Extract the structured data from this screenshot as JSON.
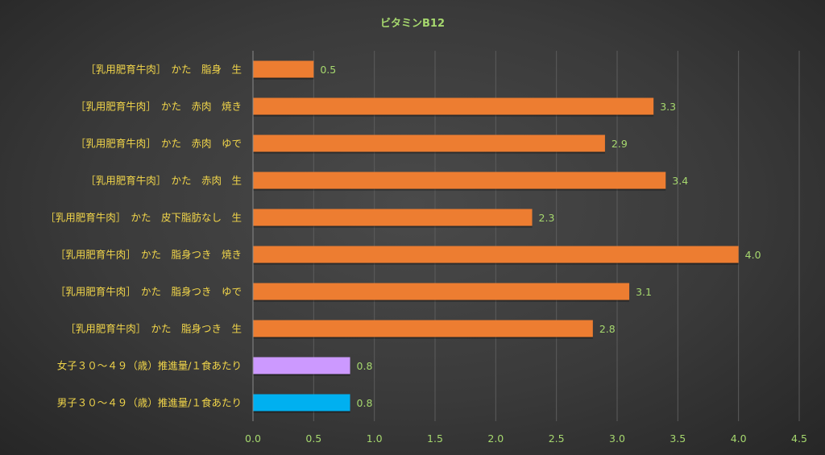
{
  "chart_data": {
    "type": "bar",
    "orientation": "horizontal",
    "title": "ビタミンB12",
    "categories": [
      "［乳用肥育牛肉］　かた　脂身　生",
      "［乳用肥育牛肉］　かた　赤肉　焼き",
      "［乳用肥育牛肉］　かた　赤肉　ゆで",
      "［乳用肥育牛肉］　かた　赤肉　生",
      "［乳用肥育牛肉］　かた　皮下脂肪なし　生",
      "［乳用肥育牛肉］　かた　脂身つき　焼き",
      "［乳用肥育牛肉］　かた　脂身つき　ゆで",
      "［乳用肥育牛肉］　かた　脂身つき　生",
      "女子３０～４９（歳）推進量/１食あたり",
      "男子３０～４９（歳）推進量/１食あたり"
    ],
    "values": [
      0.5,
      3.3,
      2.9,
      3.4,
      2.3,
      4.0,
      3.1,
      2.8,
      0.8,
      0.8
    ],
    "value_labels": [
      "0.5",
      "3.3",
      "2.9",
      "3.4",
      "2.3",
      "4.0",
      "3.1",
      "2.8",
      "0.8",
      "0.8"
    ],
    "bar_colors": [
      "#ed7d31",
      "#ed7d31",
      "#ed7d31",
      "#ed7d31",
      "#ed7d31",
      "#ed7d31",
      "#ed7d31",
      "#ed7d31",
      "#cc99ff",
      "#00b0f0"
    ],
    "xlim": [
      0,
      4.5
    ],
    "xticks": [
      "0.0",
      "0.5",
      "1.0",
      "1.5",
      "2.0",
      "2.5",
      "3.0",
      "3.5",
      "4.0",
      "4.5"
    ],
    "grid": true,
    "legend": "none",
    "xlabel": "",
    "ylabel": ""
  }
}
